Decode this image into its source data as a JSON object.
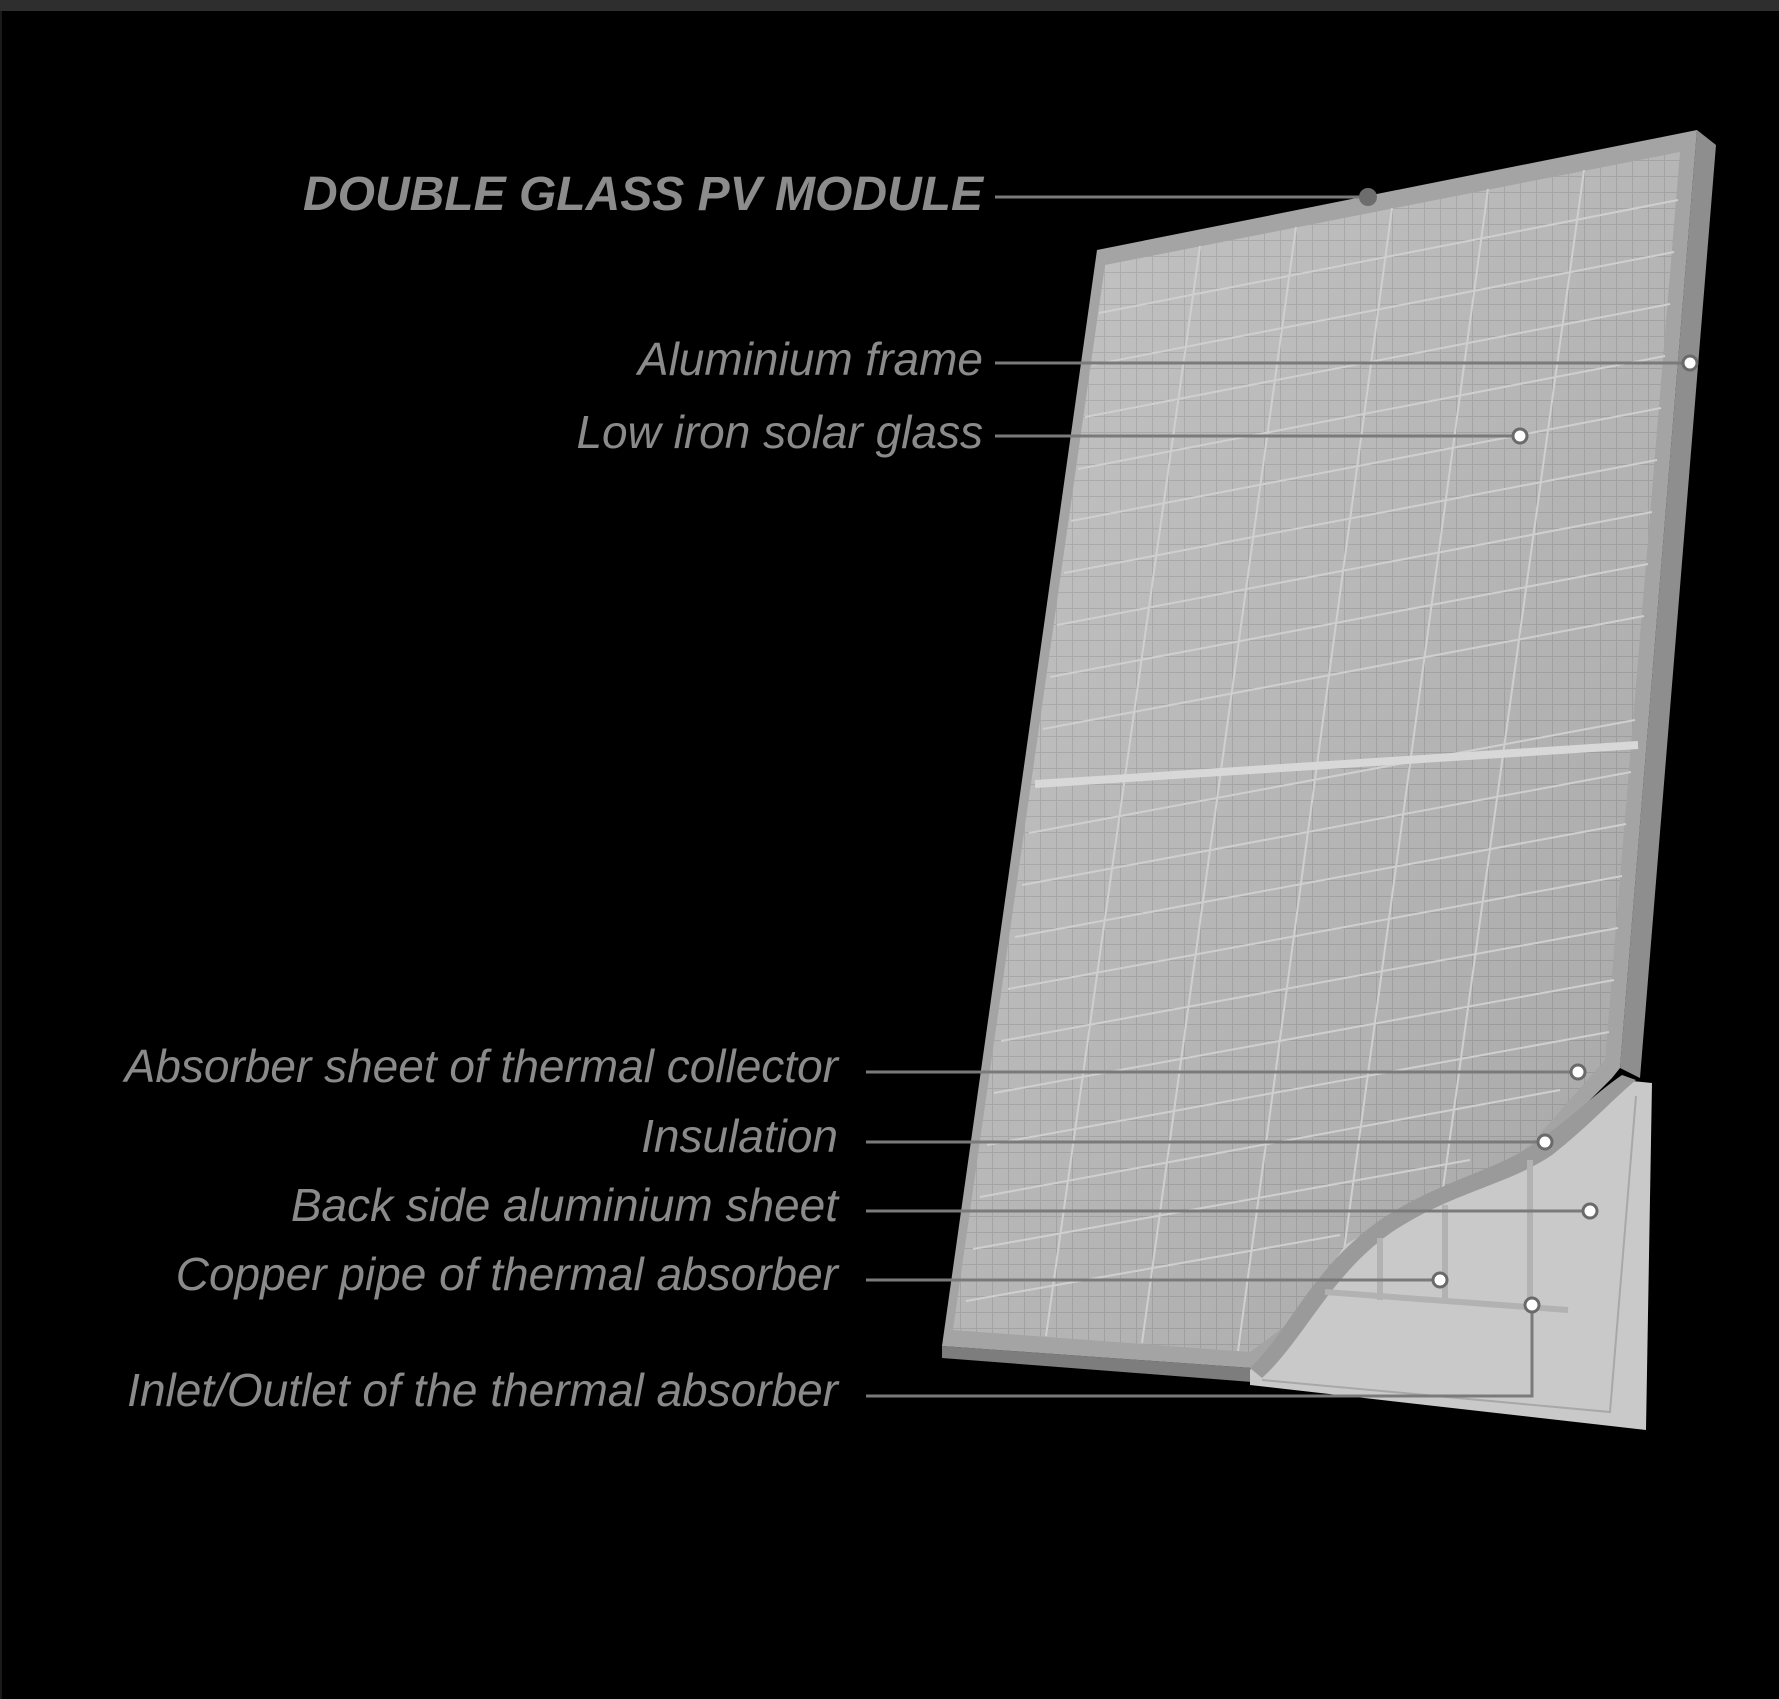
{
  "diagram": {
    "title": "DOUBLE GLASS PV MODULE",
    "labels": {
      "aluminium_frame": "Aluminium frame",
      "low_iron_glass": "Low iron solar glass",
      "absorber_sheet": "Absorber sheet of thermal collector",
      "insulation": "Insulation",
      "back_sheet": "Back side aluminium sheet",
      "copper_pipe": "Copper pipe of thermal absorber",
      "inlet_outlet": "Inlet/Outlet of the thermal absorber"
    },
    "colors": {
      "background": "#000000",
      "label_text": "#8a8a8a",
      "leader_line": "#7a7a7a",
      "panel_surface": "#b9b9b9",
      "frame": "#8a8a8a"
    }
  }
}
